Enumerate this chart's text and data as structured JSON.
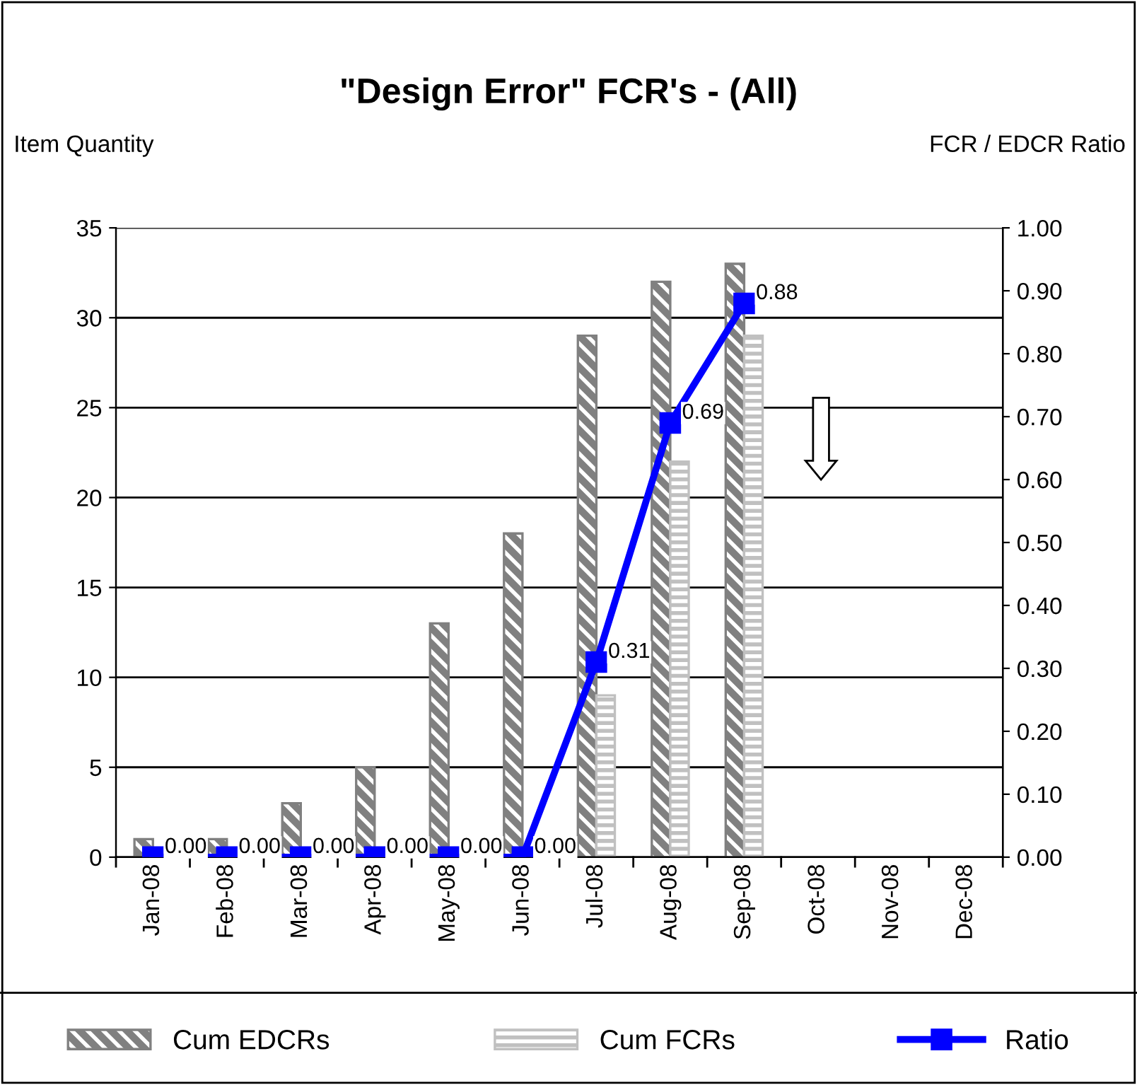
{
  "chart_data": {
    "type": "bar",
    "title": "\"Design Error\" FCR's - (All)",
    "ylabel": "Item Quantity",
    "y2label": "FCR / EDCR Ratio",
    "categories": [
      "Jan-08",
      "Feb-08",
      "Mar-08",
      "Apr-08",
      "May-08",
      "Jun-08",
      "Jul-08",
      "Aug-08",
      "Sep-08",
      "Oct-08",
      "Nov-08",
      "Dec-08"
    ],
    "series": [
      {
        "name": "Cum EDCRs",
        "type": "bar",
        "color": "#808080",
        "values": [
          1,
          1,
          3,
          5,
          13,
          18,
          29,
          32,
          33,
          null,
          null,
          null
        ]
      },
      {
        "name": "Cum FCRs",
        "type": "bar",
        "color": "#c0c0c0",
        "values": [
          null,
          null,
          null,
          null,
          null,
          null,
          9,
          22,
          29,
          null,
          null,
          null
        ]
      },
      {
        "name": "Ratio",
        "type": "line",
        "axis": "y2",
        "color": "#0000ff",
        "marker": "square",
        "line_style": "solid",
        "values": [
          0,
          0,
          0,
          0,
          0,
          0,
          0.31,
          0.69,
          0.88,
          null,
          null,
          null
        ],
        "value_labels": [
          "0.00",
          "0.00",
          "0.00",
          "0.00",
          "0.00",
          "0.00",
          "0.31",
          "0.69",
          "0.88",
          null,
          null,
          null
        ]
      }
    ],
    "ylim": [
      0,
      35
    ],
    "yticks": [
      0,
      5,
      10,
      15,
      20,
      25,
      30,
      35
    ],
    "y2lim": [
      0,
      1
    ],
    "y2ticks": [
      {
        "value": 0,
        "label": "0.00"
      },
      {
        "value": 0.1,
        "label": "0.10"
      },
      {
        "value": 0.2,
        "label": "0.20"
      },
      {
        "value": 0.3,
        "label": "0.30"
      },
      {
        "value": 0.4,
        "label": "0.40"
      },
      {
        "value": 0.5,
        "label": "0.50"
      },
      {
        "value": 0.6,
        "label": "0.60"
      },
      {
        "value": 0.7,
        "label": "0.70"
      },
      {
        "value": 0.8,
        "label": "0.80"
      },
      {
        "value": 0.9,
        "label": "0.90"
      },
      {
        "value": 1,
        "label": "1.00"
      }
    ],
    "grid": "y",
    "legend": "bottom"
  }
}
